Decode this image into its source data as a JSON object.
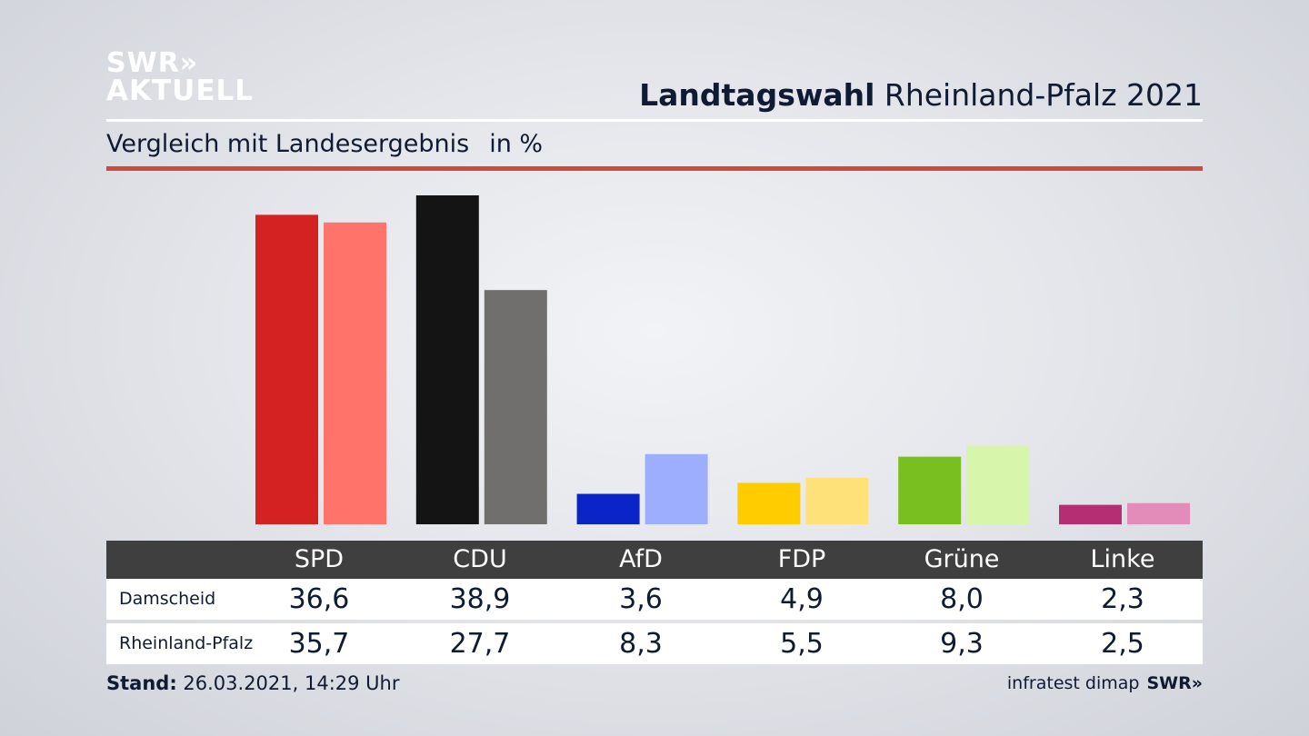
{
  "logo": {
    "line1": "SWR»",
    "line2": "AKTUELL"
  },
  "header": {
    "title_bold": "Landtagswahl",
    "title_rest": " Rheinland-Pfalz 2021"
  },
  "subtitle": {
    "text": "Vergleich mit Landesergebnis",
    "unit": "in %"
  },
  "footer": {
    "stand_label": "Stand:",
    "stand_value": " 26.03.2021, 14:29 Uhr",
    "source": "infratest dimap",
    "brand": "SWR»"
  },
  "table": {
    "headers": [
      "SPD",
      "CDU",
      "AfD",
      "FDP",
      "Grüne",
      "Linke"
    ],
    "rows": [
      {
        "label": "Damscheid",
        "values": [
          "36,6",
          "38,9",
          "3,6",
          "4,9",
          "8,0",
          "2,3"
        ]
      },
      {
        "label": "Rheinland-Pfalz",
        "values": [
          "35,7",
          "27,7",
          "8,3",
          "5,5",
          "9,3",
          "2,5"
        ]
      }
    ]
  },
  "chart_data": {
    "type": "bar",
    "categories": [
      "SPD",
      "CDU",
      "AfD",
      "FDP",
      "Grüne",
      "Linke"
    ],
    "series": [
      {
        "name": "Damscheid",
        "values": [
          36.6,
          38.9,
          3.6,
          4.9,
          8.0,
          2.3
        ],
        "colors": [
          "#d42121",
          "#141414",
          "#0b24c8",
          "#ffcc00",
          "#79bf1f",
          "#b52d73"
        ]
      },
      {
        "name": "Rheinland-Pfalz",
        "values": [
          35.7,
          27.7,
          8.3,
          5.5,
          9.3,
          2.5
        ],
        "colors": [
          "#ff736b",
          "#706f6d",
          "#9daeff",
          "#ffe17a",
          "#d7f5ab",
          "#e38cb9"
        ]
      }
    ],
    "ylim": [
      0,
      40
    ],
    "grid": false,
    "legend": "none"
  }
}
